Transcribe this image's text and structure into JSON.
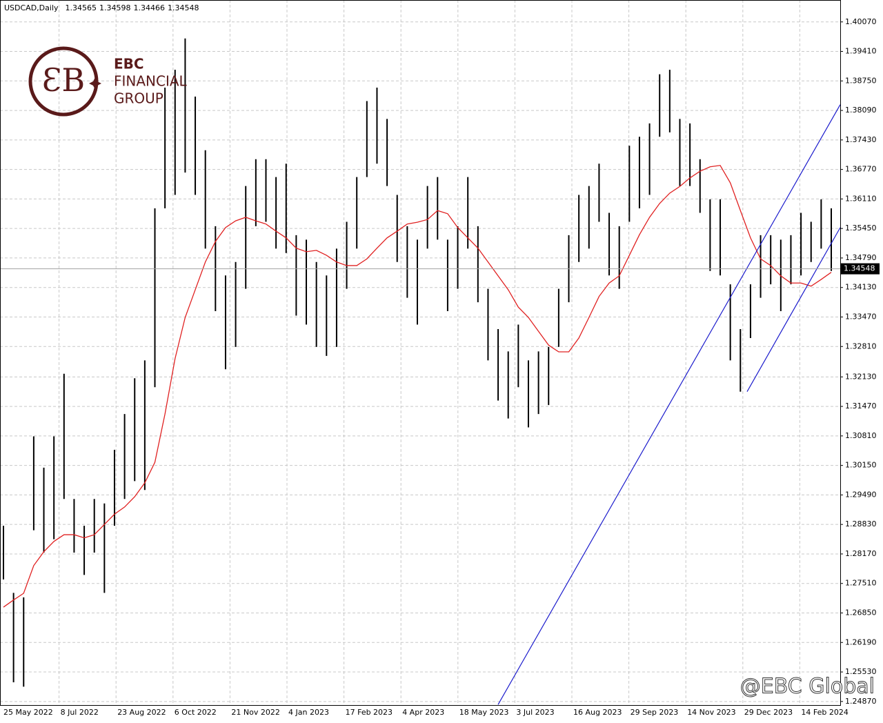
{
  "chart_data": {
    "type": "range_bar",
    "header": {
      "symbol": "USDCAD,Daily",
      "open": 1.34565,
      "high": 1.34598,
      "low": 1.34466,
      "close": 1.34548
    },
    "last_price": 1.34548,
    "ylim": [
      1.2479,
      1.4056
    ],
    "yticks": [
      {
        "value": 1.4007,
        "label": "1.40070"
      },
      {
        "value": 1.3941,
        "label": "1.39410"
      },
      {
        "value": 1.3875,
        "label": "1.38750"
      },
      {
        "value": 1.3809,
        "label": "1.38090"
      },
      {
        "value": 1.3743,
        "label": "1.37430"
      },
      {
        "value": 1.3677,
        "label": "1.36770"
      },
      {
        "value": 1.3611,
        "label": "1.36110"
      },
      {
        "value": 1.3545,
        "label": "1.35450"
      },
      {
        "value": 1.3479,
        "label": "1.34790"
      },
      {
        "value": 1.3413,
        "label": "1.34130"
      },
      {
        "value": 1.3347,
        "label": "1.33470"
      },
      {
        "value": 1.3281,
        "label": "1.32810"
      },
      {
        "value": 1.3213,
        "label": "1.32130"
      },
      {
        "value": 1.3147,
        "label": "1.31470"
      },
      {
        "value": 1.3081,
        "label": "1.30810"
      },
      {
        "value": 1.3015,
        "label": "1.30150"
      },
      {
        "value": 1.2949,
        "label": "1.29490"
      },
      {
        "value": 1.2883,
        "label": "1.28830"
      },
      {
        "value": 1.2817,
        "label": "1.28170"
      },
      {
        "value": 1.2751,
        "label": "1.27510"
      },
      {
        "value": 1.2685,
        "label": "1.26850"
      },
      {
        "value": 1.2619,
        "label": "1.26190"
      },
      {
        "value": 1.2553,
        "label": "1.25530"
      },
      {
        "value": 1.2487,
        "label": "1.24870"
      }
    ],
    "x_labels": [
      "25 May 2022",
      "8 Jul 2022",
      "23 Aug 2022",
      "6 Oct 2022",
      "21 Nov 2022",
      "4 Jan 2023",
      "17 Feb 2023",
      "4 Apr 2023",
      "18 May 2023",
      "3 Jul 2023",
      "16 Aug 2023",
      "29 Sep 2023",
      "14 Nov 2023",
      "29 Dec 2023",
      "14 Feb 2024"
    ],
    "grid": true,
    "bar_color": "#000000",
    "high": [
      1.288,
      1.273,
      1.272,
      1.308,
      1.301,
      1.308,
      1.322,
      1.294,
      1.288,
      1.294,
      1.293,
      1.305,
      1.313,
      1.321,
      1.325,
      1.359,
      1.386,
      1.39,
      1.397,
      1.384,
      1.372,
      1.355,
      1.344,
      1.347,
      1.364,
      1.37,
      1.37,
      1.366,
      1.369,
      1.353,
      1.352,
      1.347,
      1.344,
      1.35,
      1.356,
      1.366,
      1.383,
      1.386,
      1.379,
      1.362,
      1.355,
      1.352,
      1.364,
      1.366,
      1.352,
      1.355,
      1.366,
      1.355,
      1.341,
      1.332,
      1.327,
      1.333,
      1.325,
      1.327,
      1.328,
      1.341,
      1.353,
      1.362,
      1.364,
      1.369,
      1.358,
      1.355,
      1.373,
      1.375,
      1.378,
      1.389,
      1.39,
      1.379,
      1.378,
      1.37,
      1.361,
      1.361,
      1.342,
      1.332,
      1.342,
      1.353,
      1.353,
      1.352,
      1.353,
      1.358,
      1.356,
      1.361,
      1.359
    ],
    "low": [
      1.276,
      1.253,
      1.252,
      1.287,
      1.282,
      1.285,
      1.294,
      1.282,
      1.277,
      1.282,
      1.273,
      1.288,
      1.294,
      1.298,
      1.296,
      1.319,
      1.359,
      1.362,
      1.367,
      1.362,
      1.35,
      1.336,
      1.323,
      1.328,
      1.341,
      1.355,
      1.356,
      1.35,
      1.349,
      1.335,
      1.333,
      1.328,
      1.326,
      1.328,
      1.341,
      1.35,
      1.366,
      1.369,
      1.364,
      1.347,
      1.339,
      1.333,
      1.35,
      1.352,
      1.336,
      1.341,
      1.35,
      1.338,
      1.325,
      1.316,
      1.312,
      1.319,
      1.31,
      1.313,
      1.315,
      1.328,
      1.338,
      1.347,
      1.35,
      1.356,
      1.344,
      1.341,
      1.356,
      1.359,
      1.362,
      1.375,
      1.376,
      1.364,
      1.364,
      1.358,
      1.345,
      1.344,
      1.325,
      1.318,
      1.33,
      1.339,
      1.342,
      1.336,
      1.342,
      1.344,
      1.347,
      1.35,
      1.345
    ],
    "moving_average": {
      "color": "#e02020",
      "values": [
        1.2698,
        1.2714,
        1.2729,
        1.2791,
        1.2822,
        1.2845,
        1.286,
        1.286,
        1.2853,
        1.286,
        1.2883,
        1.2906,
        1.2922,
        1.2945,
        1.2976,
        1.3022,
        1.313,
        1.3254,
        1.3346,
        1.3408,
        1.347,
        1.3516,
        1.3547,
        1.3562,
        1.357,
        1.3562,
        1.3555,
        1.3539,
        1.3524,
        1.3501,
        1.3493,
        1.3496,
        1.3485,
        1.347,
        1.3462,
        1.3462,
        1.3477,
        1.3501,
        1.3524,
        1.3539,
        1.3555,
        1.3559,
        1.3565,
        1.3585,
        1.3578,
        1.3547,
        1.3524,
        1.3501,
        1.347,
        1.3439,
        1.3408,
        1.3369,
        1.3346,
        1.3315,
        1.3284,
        1.3269,
        1.3269,
        1.33,
        1.3346,
        1.3393,
        1.3423,
        1.3439,
        1.3485,
        1.3531,
        1.357,
        1.3601,
        1.3624,
        1.3639,
        1.3658,
        1.3673,
        1.3683,
        1.3686,
        1.3647,
        1.3585,
        1.3524,
        1.3477,
        1.3462,
        1.3439,
        1.3423,
        1.3423,
        1.3416,
        1.3431,
        1.3447
      ]
    },
    "trendlines": {
      "color": "#1a1acc",
      "lines": [
        {
          "start": 1.248,
          "end": 1.3822
        },
        {
          "start": 1.318,
          "end": 1.3547
        }
      ]
    }
  },
  "logo": {
    "line1": "EBC",
    "line2": "FINANCIAL",
    "line3": "GROUP"
  },
  "watermark": "@EBC Global"
}
